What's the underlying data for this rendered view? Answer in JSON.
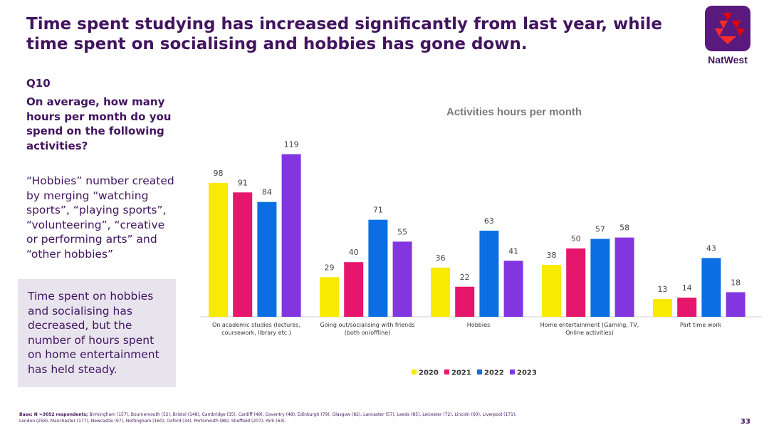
{
  "header": {
    "title_line1": "Time spent studying has increased significantly from last year, while",
    "title_line2": "time spent on socialising and hobbies has gone down.",
    "brand_name": "NatWest",
    "brand_color": "#5a1a7d",
    "logo_icon": "natwest-cubes-icon"
  },
  "left_panel": {
    "question_id": "Q10",
    "question_text": "On average, how many hours per month do you spend on the following activities?",
    "note": "“Hobbies” number created by merging “watching sports”, “playing sports”, “volunteering”, “creative or performing arts” and “other hobbies”",
    "callout": "Time spent on hobbies and socialising has decreased, but the number of hours spent on home entertainment has held steady."
  },
  "footer": {
    "base_label": "Base: N =3052 respondents;",
    "base_detail": "Birmingham (157),  Bournemouth (52), Bristol (148), Cambridge (35), Cardiff (49), Coventry (48),  Edinburgh (79), Glasgow (82), Lancaster (57), Leeds (85), Leicester (72), Lincoln (60), Liverpool (171), London (258), Manchester (177), Newcastle (97), Nottingham (160), Oxford (34), Portsmouth (88), Sheffield (207), York (63).",
    "page_number": "33"
  },
  "chart_data": {
    "type": "bar",
    "title": "Activities hours per month",
    "categories": [
      [
        "On academic studies (lectures,",
        "coursework, library etc.)"
      ],
      [
        "Going out/socialising with friends",
        "(both on/offline)"
      ],
      [
        "Hobbies"
      ],
      [
        "Home entertainment (Gaming, TV,",
        "Online activities)"
      ],
      [
        "Part time work"
      ]
    ],
    "series": [
      {
        "name": "2020",
        "color": "#f8ea00",
        "values": [
          98,
          29,
          36,
          38,
          13
        ]
      },
      {
        "name": "2021",
        "color": "#e5166b",
        "values": [
          91,
          40,
          22,
          50,
          14
        ]
      },
      {
        "name": "2022",
        "color": "#0b6fe3",
        "values": [
          84,
          71,
          63,
          57,
          43
        ]
      },
      {
        "name": "2023",
        "color": "#8236e0",
        "values": [
          119,
          55,
          41,
          58,
          18
        ]
      }
    ],
    "ylim": [
      0,
      125
    ],
    "xlabel": "",
    "ylabel": "",
    "legend": "bottom"
  }
}
